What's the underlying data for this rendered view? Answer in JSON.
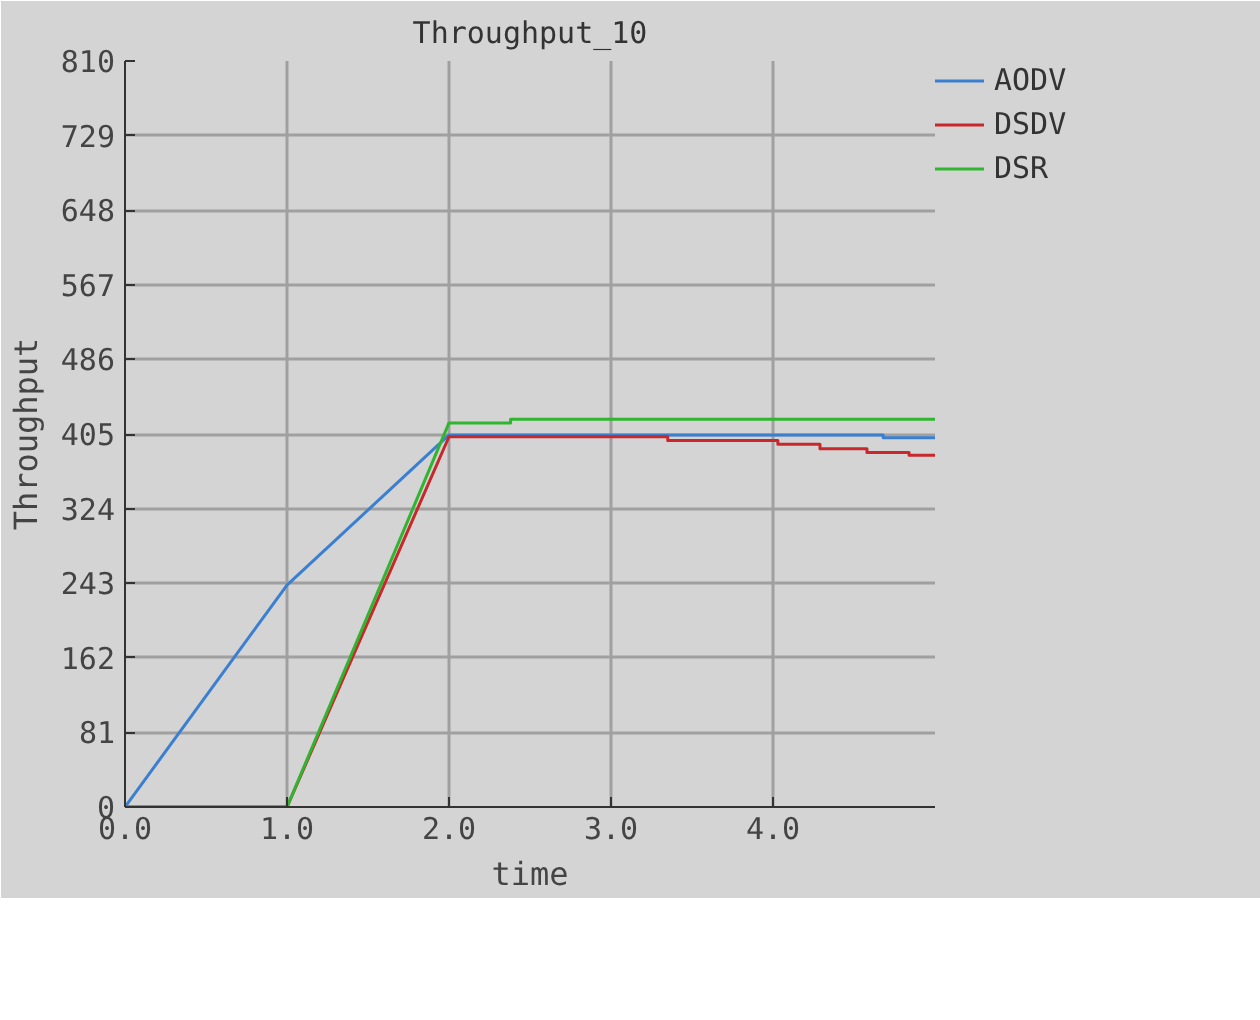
{
  "chart_data": {
    "type": "line",
    "title": "Throughput_10",
    "xlabel": "time",
    "ylabel": "Throughput",
    "xlim": [
      0,
      5
    ],
    "ylim": [
      0,
      810
    ],
    "xticks": [
      {
        "value": 0,
        "label": "0.0"
      },
      {
        "value": 1,
        "label": "1.0"
      },
      {
        "value": 2,
        "label": "2.0"
      },
      {
        "value": 3,
        "label": "3.0"
      },
      {
        "value": 4,
        "label": "4.0"
      }
    ],
    "yticks": [
      0,
      81,
      162,
      243,
      324,
      405,
      486,
      567,
      648,
      729,
      810
    ],
    "grid": true,
    "legend": "top right",
    "marker": "none",
    "line_style": "solid",
    "series": [
      {
        "name": "AODV",
        "color": "#3a7fd0",
        "x": [
          0,
          1,
          2,
          2.7,
          4.68,
          4.68,
          5
        ],
        "values": [
          0,
          241,
          404,
          404,
          404,
          401,
          401
        ]
      },
      {
        "name": "DSDV",
        "color": "#c8282c",
        "x": [
          0,
          1,
          2,
          3.35,
          3.35,
          4.03,
          4.03,
          4.29,
          4.29,
          4.58,
          4.58,
          4.84,
          4.84,
          5
        ],
        "values": [
          0,
          0,
          402,
          402,
          398,
          398,
          394,
          394,
          389,
          389,
          385,
          385,
          382,
          382
        ]
      },
      {
        "name": "DSR",
        "color": "#2fb52f",
        "x": [
          0,
          1,
          2,
          2.38,
          2.38,
          5
        ],
        "values": [
          0,
          0,
          417,
          417,
          421,
          421
        ]
      }
    ]
  }
}
